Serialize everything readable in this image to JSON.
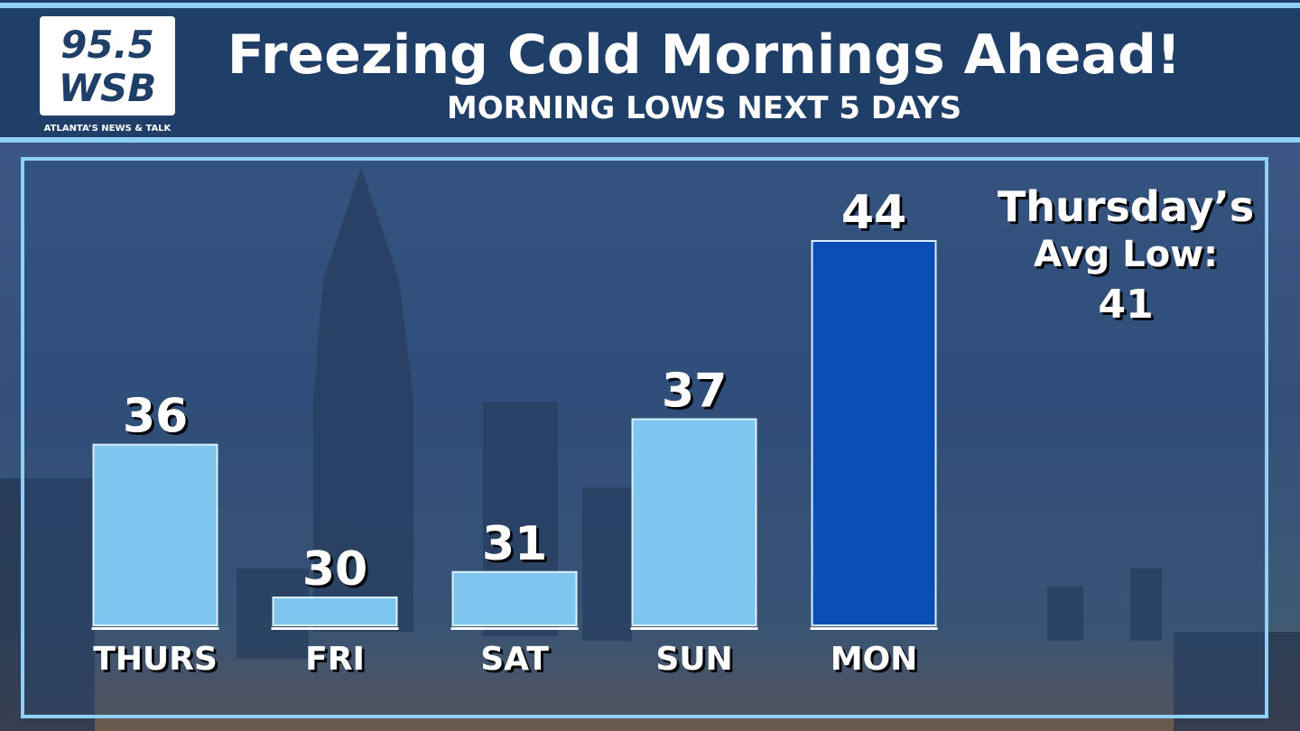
{
  "logo": {
    "frequency": "95.5",
    "call_sign": "WSB",
    "tagline": "ATLANTA’S NEWS & TALK"
  },
  "chart_data": {
    "type": "bar",
    "title": "Freezing Cold Mornings Ahead!",
    "subtitle": "MORNING LOWS NEXT 5 DAYS",
    "categories": [
      "THURS",
      "FRI",
      "SAT",
      "SUN",
      "MON"
    ],
    "values": [
      36,
      30,
      31,
      37,
      44
    ],
    "colors": [
      "#7fc6ee",
      "#7fc6ee",
      "#7fc6ee",
      "#7fc6ee",
      "#0b4fb6"
    ],
    "annotation_lines": [
      "Thursday’s",
      "Avg Low:"
    ],
    "annotation_value": 41
  }
}
